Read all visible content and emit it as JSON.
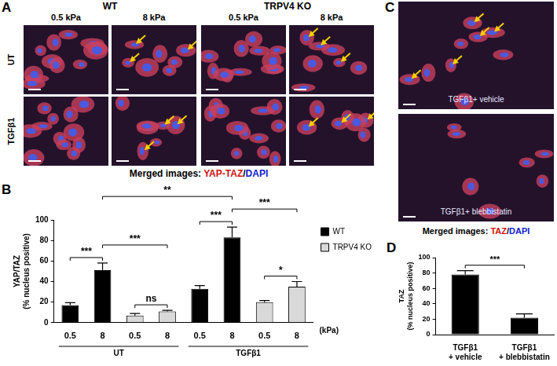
{
  "figure": {
    "panel_a": {
      "panel_label": "A",
      "column_groups": [
        {
          "label": "WT",
          "columns": [
            "0.5 kPa",
            "8 kPa"
          ]
        },
        {
          "label": "TRPV4 KO",
          "columns": [
            "0.5 kPa",
            "8 kPa"
          ]
        }
      ],
      "rows": [
        "UT",
        "TGFβ1"
      ],
      "caption": [
        "Merged images: ",
        "YAP-TAZ",
        "/",
        "DAPI"
      ]
    },
    "panel_c": {
      "panel_label": "C",
      "images": [
        "TGFβ1+ vehicle",
        "TGFβ1+ blebbistatin"
      ],
      "caption": [
        "Merged images: ",
        "TAZ",
        "/",
        "DAPI"
      ]
    }
  },
  "chart_data": [
    {
      "type": "bar",
      "panel_label": "B",
      "y_label": [
        "YAP/TAZ",
        "(% nucleus positive)"
      ],
      "categories": [
        "0.5",
        "8",
        "0.5",
        "8",
        "0.5",
        "8",
        "0.5",
        "8"
      ],
      "series": [
        {
          "name": "WT",
          "color": "#000000",
          "values": [
            17,
            51,
            null,
            null,
            33,
            83,
            null,
            null
          ],
          "errors": [
            2.5,
            7,
            null,
            null,
            3,
            10,
            null,
            null
          ]
        },
        {
          "name": "TRPV4 KO",
          "color": "#d9d9d9",
          "values": [
            null,
            null,
            7,
            11,
            null,
            null,
            20,
            35
          ],
          "errors": [
            null,
            null,
            2,
            1,
            null,
            null,
            1.5,
            5
          ]
        }
      ],
      "groups": [
        {
          "label": "UT",
          "from": 0,
          "to": 3
        },
        {
          "label": "TGFβ1",
          "from": 4,
          "to": 7
        }
      ],
      "x_unit_label": "(kPa)",
      "brackets": [
        {
          "from": 0,
          "to": 1,
          "label": "***"
        },
        {
          "from": 1,
          "to": 3,
          "label": "***"
        },
        {
          "from": 2,
          "to": 3,
          "label": "ns"
        },
        {
          "from": 1,
          "to": 5,
          "label": "**"
        },
        {
          "from": 4,
          "to": 5,
          "label": "***"
        },
        {
          "from": 5,
          "to": 7,
          "label": "***"
        },
        {
          "from": 6,
          "to": 7,
          "label": "*"
        }
      ],
      "ylim": [
        0,
        100
      ],
      "yticks": [
        0,
        20,
        40,
        60,
        80,
        100
      ],
      "grid": false,
      "legend": "right"
    },
    {
      "type": "bar",
      "panel_label": "D",
      "y_label": [
        "TAZ",
        "(% nucleus positive)"
      ],
      "categories": [
        [
          "TGFβ1",
          "+ vehicle"
        ],
        [
          "TGFβ1",
          "+ blebbistatin"
        ]
      ],
      "values": [
        78,
        22
      ],
      "errors": [
        5,
        5
      ],
      "color": "#000000",
      "brackets": [
        {
          "from": 0,
          "to": 1,
          "label": "***"
        }
      ],
      "ylim": [
        0,
        100
      ],
      "yticks": [
        0,
        20,
        40,
        60,
        80,
        100
      ],
      "grid": false
    }
  ]
}
